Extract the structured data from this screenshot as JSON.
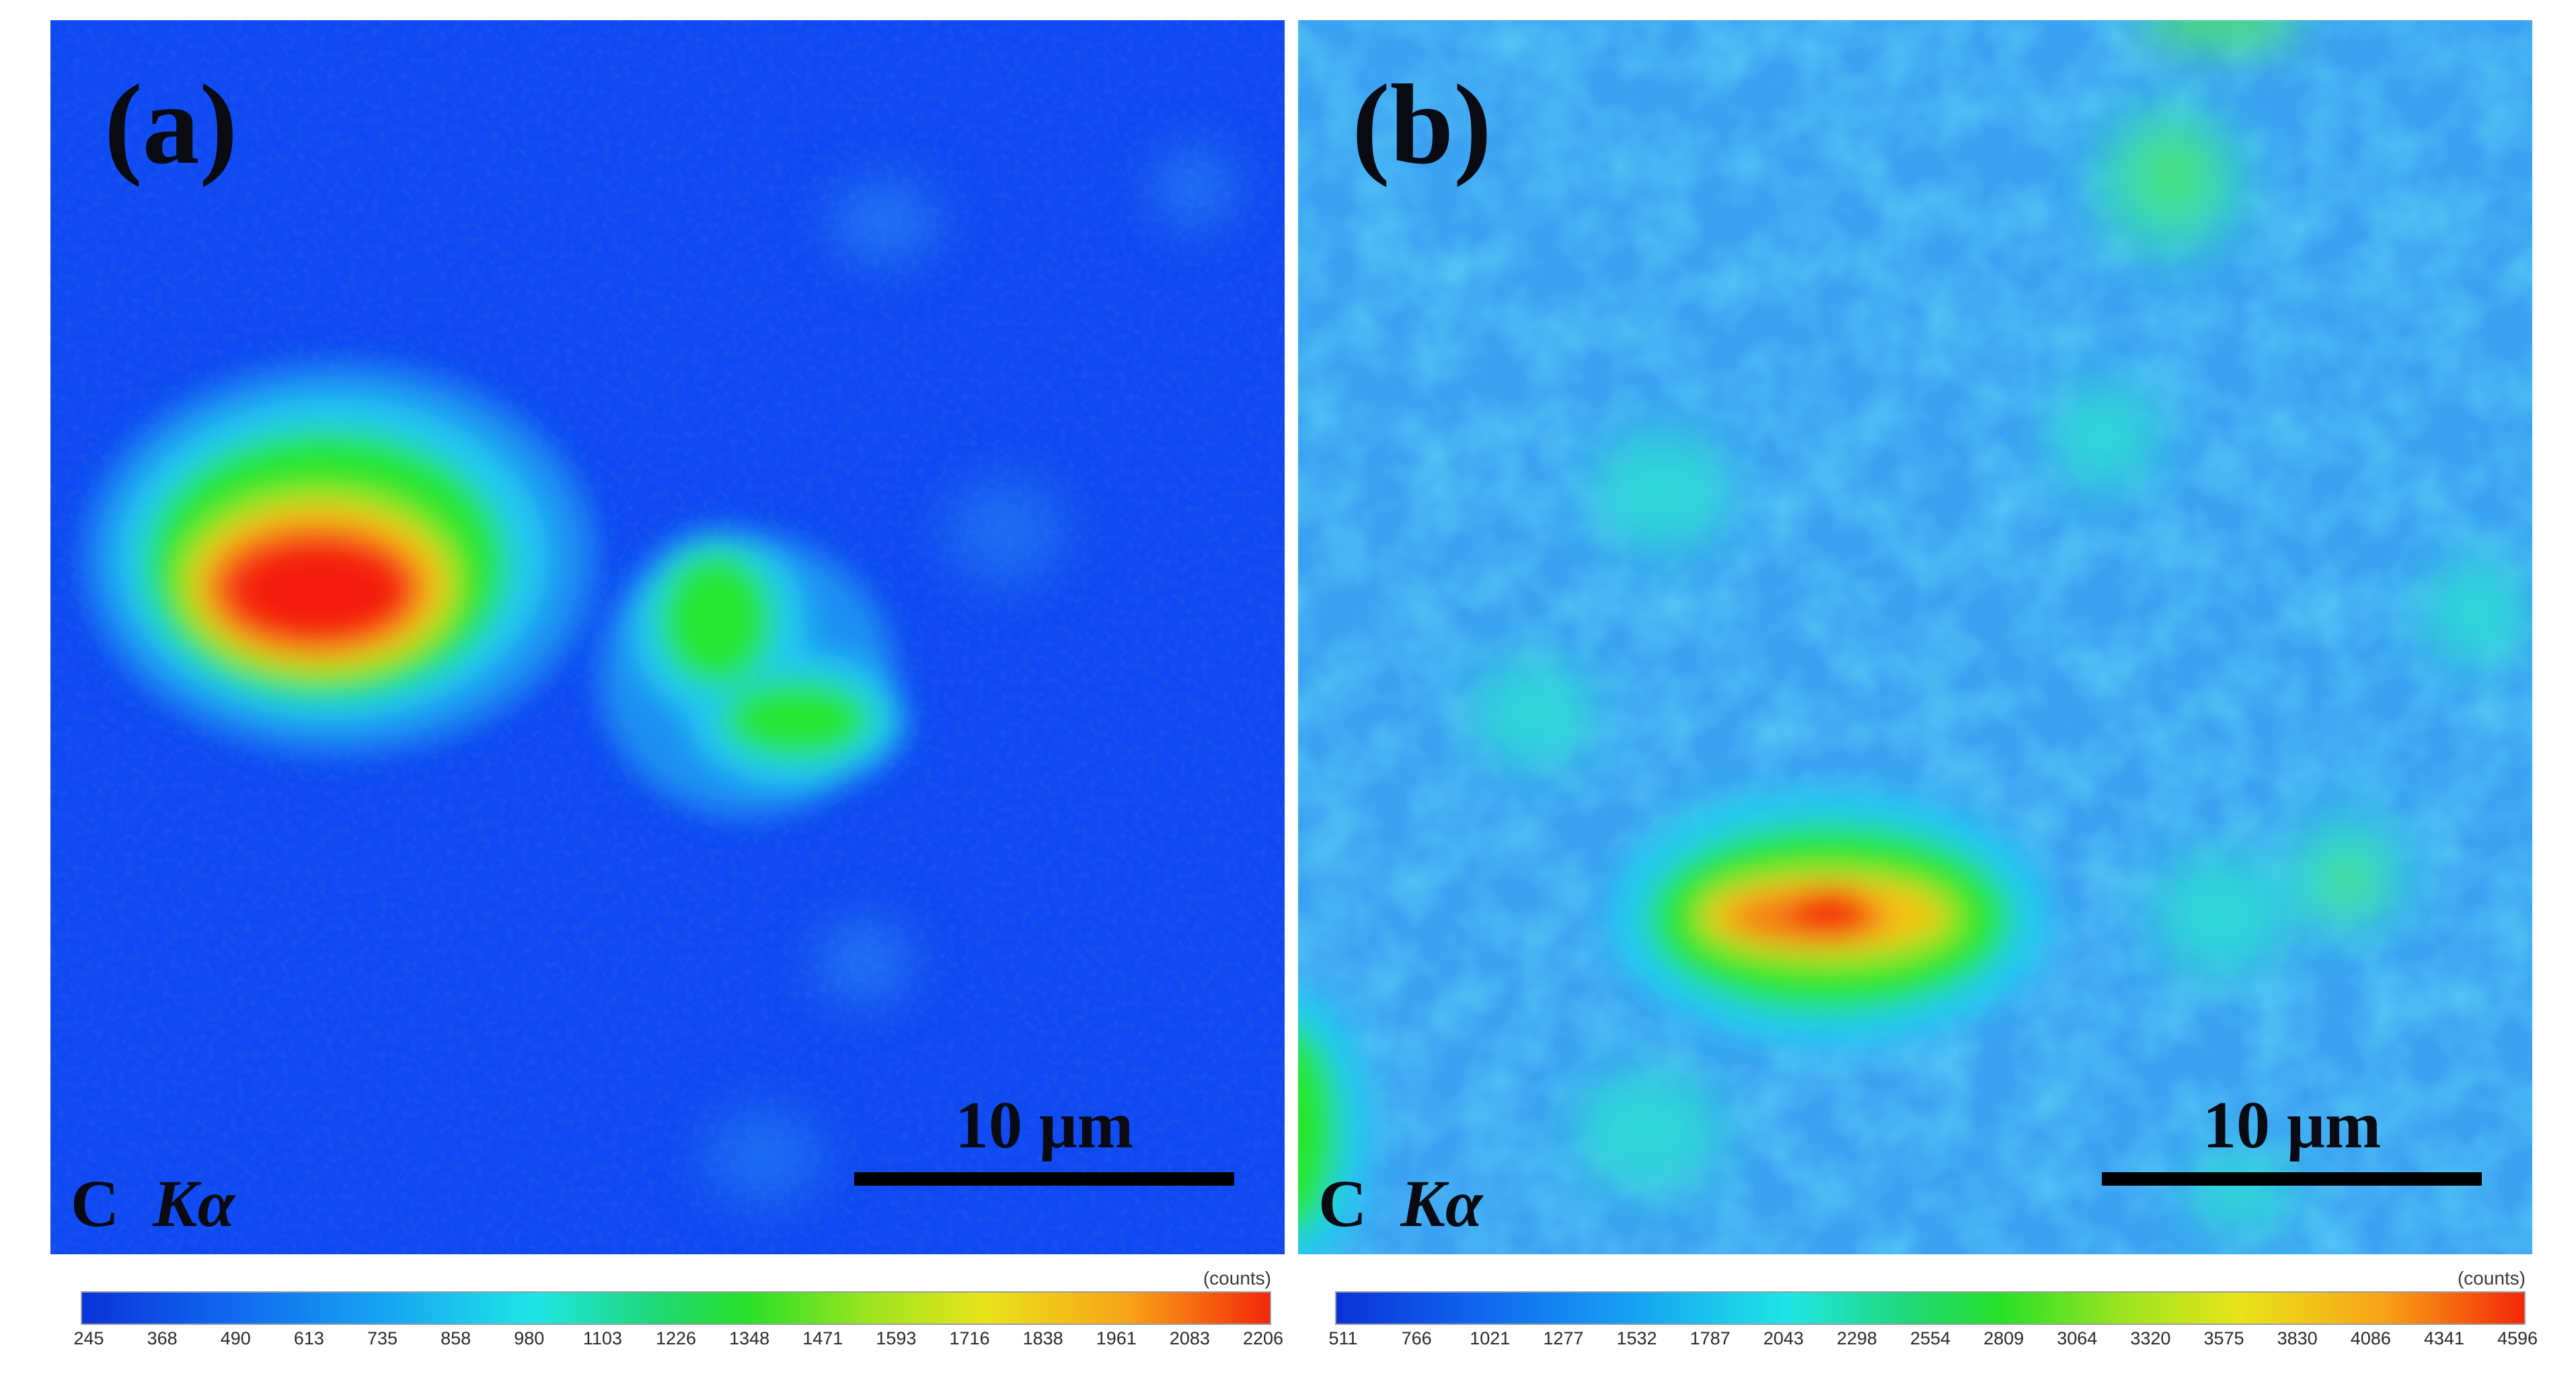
{
  "panels": [
    {
      "id": "a",
      "label": "(a)",
      "element_label_main": "C",
      "element_label_line": "Kα",
      "scalebar_text": "10 μm",
      "colorbar_unit": "(counts)",
      "colorbar_ticks": [
        "245",
        "368",
        "490",
        "613",
        "735",
        "858",
        "980",
        "1103",
        "1226",
        "1348",
        "1471",
        "1593",
        "1716",
        "1838",
        "1961",
        "2083",
        "2206"
      ],
      "colors": {
        "background": "#0e49f2",
        "hot": "#f41a08",
        "mid": "#27e632",
        "halo": "#2ad6f0"
      }
    },
    {
      "id": "b",
      "label": "(b)",
      "element_label_main": "C",
      "element_label_line": "Kα",
      "scalebar_text": "10 μm",
      "colorbar_unit": "(counts)",
      "colorbar_ticks": [
        "511",
        "766",
        "1021",
        "1277",
        "1532",
        "1787",
        "2043",
        "2298",
        "2554",
        "2809",
        "3064",
        "3320",
        "3575",
        "3830",
        "4086",
        "4341",
        "4596"
      ],
      "colors": {
        "background": "#3ba2f2",
        "hot": "#f41a08",
        "mid": "#27e632",
        "halo": "#2ad6f0"
      }
    }
  ]
}
